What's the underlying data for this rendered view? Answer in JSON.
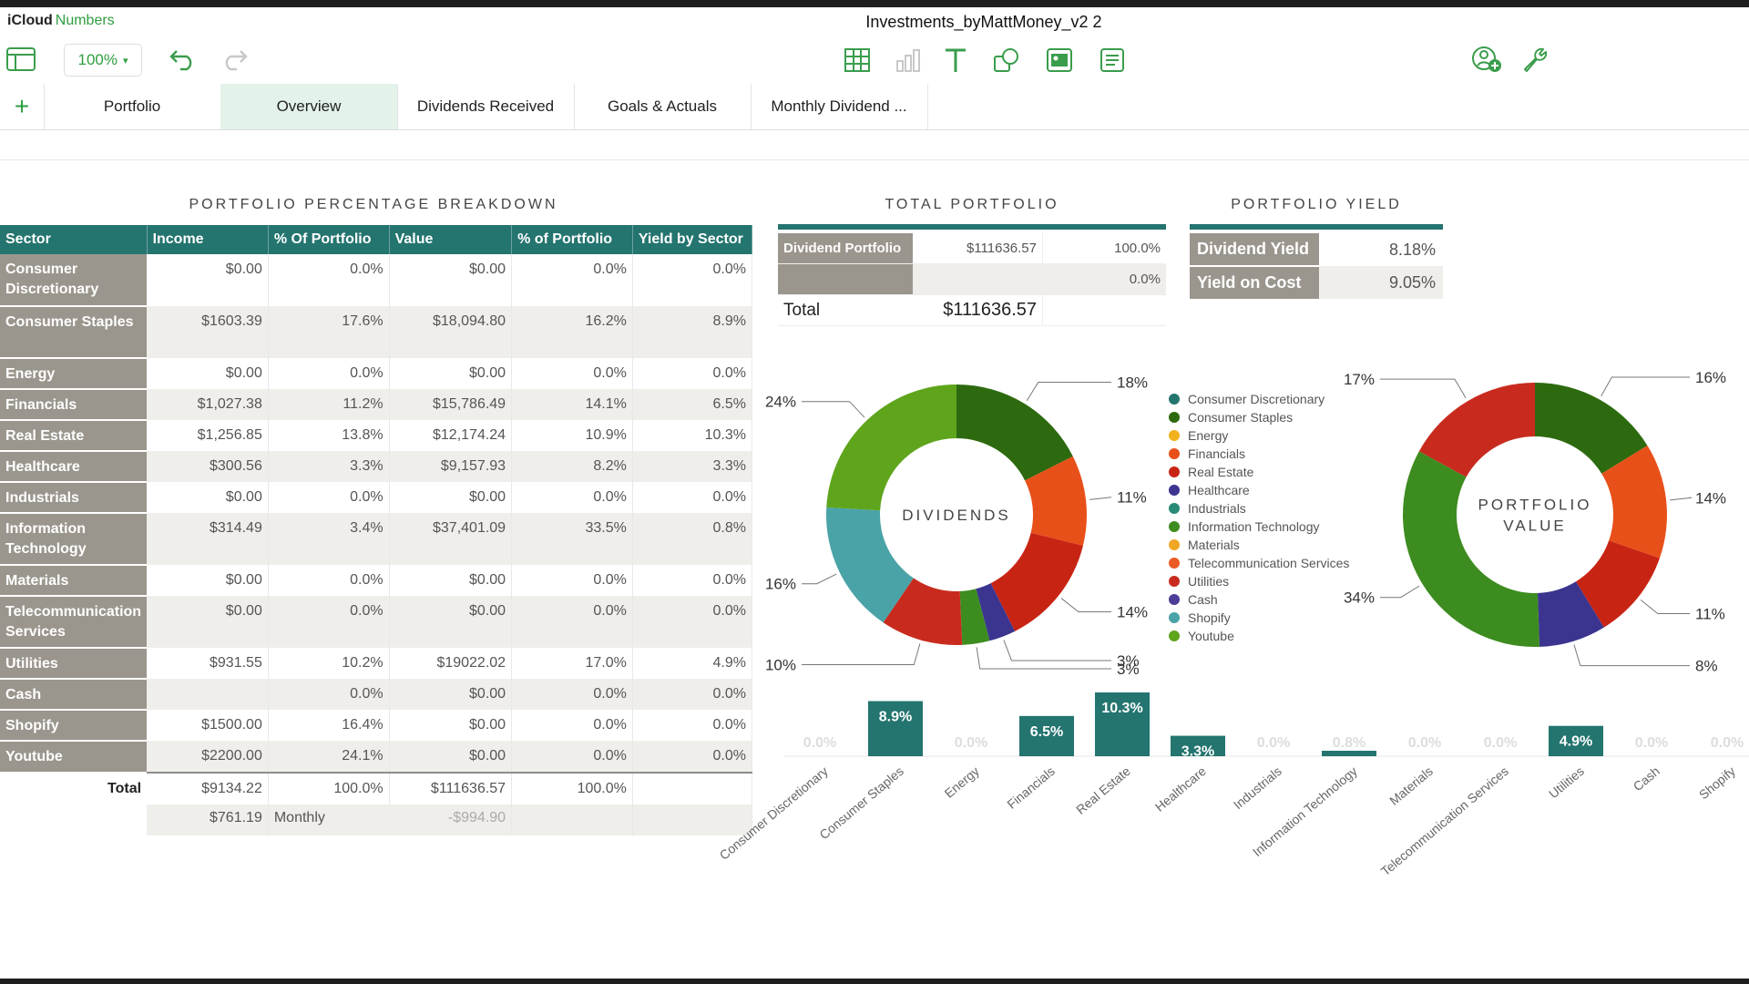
{
  "app": {
    "brand": "iCloud",
    "product": "Numbers",
    "title": "Investments_byMattMoney_v2 2"
  },
  "toolbar": {
    "zoom": "100%"
  },
  "tabs": [
    "Portfolio",
    "Overview",
    "Dividends Received",
    "Goals & Actuals",
    "Monthly Dividend ..."
  ],
  "active_tab": 1,
  "breakdown": {
    "title": "PORTFOLIO PERCENTAGE BREAKDOWN",
    "headers": [
      "Sector",
      "Income",
      "% Of Portfolio",
      "Value",
      "% of Portfolio",
      "Yield by Sector"
    ],
    "rows": [
      {
        "sector": "Consumer Discretionary",
        "income": "$0.00",
        "pct_income": "0.0%",
        "value": "$0.00",
        "pct_value": "0.0%",
        "yield": "0.0%"
      },
      {
        "sector": "Consumer Staples",
        "income": "$1603.39",
        "pct_income": "17.6%",
        "value": "$18,094.80",
        "pct_value": "16.2%",
        "yield": "8.9%"
      },
      {
        "sector": "Energy",
        "income": "$0.00",
        "pct_income": "0.0%",
        "value": "$0.00",
        "pct_value": "0.0%",
        "yield": "0.0%"
      },
      {
        "sector": "Financials",
        "income": "$1,027.38",
        "pct_income": "11.2%",
        "value": "$15,786.49",
        "pct_value": "14.1%",
        "yield": "6.5%"
      },
      {
        "sector": "Real Estate",
        "income": "$1,256.85",
        "pct_income": "13.8%",
        "value": "$12,174.24",
        "pct_value": "10.9%",
        "yield": "10.3%"
      },
      {
        "sector": "Healthcare",
        "income": "$300.56",
        "pct_income": "3.3%",
        "value": "$9,157.93",
        "pct_value": "8.2%",
        "yield": "3.3%"
      },
      {
        "sector": "Industrials",
        "income": "$0.00",
        "pct_income": "0.0%",
        "value": "$0.00",
        "pct_value": "0.0%",
        "yield": "0.0%"
      },
      {
        "sector": "Information Technology",
        "income": "$314.49",
        "pct_income": "3.4%",
        "value": "$37,401.09",
        "pct_value": "33.5%",
        "yield": "0.8%"
      },
      {
        "sector": "Materials",
        "income": "$0.00",
        "pct_income": "0.0%",
        "value": "$0.00",
        "pct_value": "0.0%",
        "yield": "0.0%"
      },
      {
        "sector": "Telecommunication Services",
        "income": "$0.00",
        "pct_income": "0.0%",
        "value": "$0.00",
        "pct_value": "0.0%",
        "yield": "0.0%"
      },
      {
        "sector": "Utilities",
        "income": "$931.55",
        "pct_income": "10.2%",
        "value": "$19022.02",
        "pct_value": "17.0%",
        "yield": "4.9%"
      },
      {
        "sector": "Cash",
        "income": "",
        "pct_income": "0.0%",
        "value": "$0.00",
        "pct_value": "0.0%",
        "yield": "0.0%"
      },
      {
        "sector": "Shopify",
        "income": "$1500.00",
        "pct_income": "16.4%",
        "value": "$0.00",
        "pct_value": "0.0%",
        "yield": "0.0%"
      },
      {
        "sector": "Youtube",
        "income": "$2200.00",
        "pct_income": "24.1%",
        "value": "$0.00",
        "pct_value": "0.0%",
        "yield": "0.0%"
      }
    ],
    "total": {
      "label": "Total",
      "income": "$9134.22",
      "pct_income": "100.0%",
      "value": "$111636.57",
      "pct_value": "100.0%"
    },
    "monthly": {
      "income": "$761.19",
      "label": "Monthly",
      "value": "-$994.90"
    }
  },
  "total_portfolio": {
    "title": "TOTAL PORTFOLIO",
    "rows": [
      {
        "label": "Dividend Portfolio",
        "value": "$111636.57",
        "pct": "100.0%"
      },
      {
        "label": "",
        "value": "",
        "pct": "0.0%"
      }
    ],
    "total_label": "Total",
    "total_value": "$111636.57"
  },
  "portfolio_yield": {
    "title": "PORTFOLIO YIELD",
    "rows": [
      {
        "label": "Dividend Yield",
        "value": "8.18%"
      },
      {
        "label": "Yield on Cost",
        "value": "9.05%"
      }
    ]
  },
  "legend": [
    {
      "name": "Consumer Discretionary",
      "color": "#24746f"
    },
    {
      "name": "Consumer Staples",
      "color": "#2d6a0f"
    },
    {
      "name": "Energy",
      "color": "#f2b11c"
    },
    {
      "name": "Financials",
      "color": "#e8501a"
    },
    {
      "name": "Real Estate",
      "color": "#c82414"
    },
    {
      "name": "Healthcare",
      "color": "#3b3590"
    },
    {
      "name": "Industrials",
      "color": "#2a8a78"
    },
    {
      "name": "Information Technology",
      "color": "#3d8c1f"
    },
    {
      "name": "Materials",
      "color": "#f0a726"
    },
    {
      "name": "Telecommunication Services",
      "color": "#ea5a23"
    },
    {
      "name": "Utilities",
      "color": "#c82b1e"
    },
    {
      "name": "Cash",
      "color": "#4b3e97"
    },
    {
      "name": "Shopify",
      "color": "#4aa3a7"
    },
    {
      "name": "Youtube",
      "color": "#5ea51c"
    }
  ],
  "chart_data": [
    {
      "type": "pie",
      "title": "DIVIDENDS",
      "slices": [
        {
          "label": "Consumer Staples",
          "value": 17.6,
          "color": "#2d6a0f",
          "data_label": "18%"
        },
        {
          "label": "Financials",
          "value": 11.2,
          "color": "#e8501a",
          "data_label": "11%"
        },
        {
          "label": "Real Estate",
          "value": 13.8,
          "color": "#c82414",
          "data_label": "14%"
        },
        {
          "label": "Healthcare",
          "value": 3.3,
          "color": "#3b3590",
          "data_label": "3%"
        },
        {
          "label": "Information Technology",
          "value": 3.4,
          "color": "#3d8c1f",
          "data_label": "3%"
        },
        {
          "label": "Utilities",
          "value": 10.2,
          "color": "#c82b1e",
          "data_label": "10%"
        },
        {
          "label": "Shopify",
          "value": 16.4,
          "color": "#4aa3a7",
          "data_label": "16%"
        },
        {
          "label": "Youtube",
          "value": 24.1,
          "color": "#5ea51c",
          "data_label": "24%"
        }
      ]
    },
    {
      "type": "pie",
      "title": "PORTFOLIO VALUE",
      "slices": [
        {
          "label": "Consumer Staples",
          "value": 16.2,
          "color": "#2d6a0f",
          "data_label": "16%"
        },
        {
          "label": "Financials",
          "value": 14.1,
          "color": "#e8501a",
          "data_label": "14%"
        },
        {
          "label": "Real Estate",
          "value": 10.9,
          "color": "#c82414",
          "data_label": "11%"
        },
        {
          "label": "Healthcare",
          "value": 8.2,
          "color": "#3b3590",
          "data_label": "8%"
        },
        {
          "label": "Information Technology",
          "value": 33.5,
          "color": "#3d8c1f",
          "data_label": "34%"
        },
        {
          "label": "Utilities",
          "value": 17.0,
          "color": "#c82b1e",
          "data_label": "17%"
        }
      ]
    },
    {
      "type": "bar",
      "categories": [
        "Consumer Discretionary",
        "Consumer Staples",
        "Energy",
        "Financials",
        "Real Estate",
        "Healthcare",
        "Industrials",
        "Information Technology",
        "Materials",
        "Telecommunication Services",
        "Utilities",
        "Cash",
        "Shopify"
      ],
      "values": [
        0.0,
        8.9,
        0.0,
        6.5,
        10.3,
        3.3,
        0.0,
        0.8,
        0.0,
        0.0,
        4.9,
        0.0,
        0.0
      ],
      "labels": [
        "0.0%",
        "8.9%",
        "0.0%",
        "6.5%",
        "10.3%",
        "3.3%",
        "0.0%",
        "0.8%",
        "0.0%",
        "0.0%",
        "4.9%",
        "0.0%",
        "0.0%"
      ],
      "color": "#24746f"
    }
  ]
}
